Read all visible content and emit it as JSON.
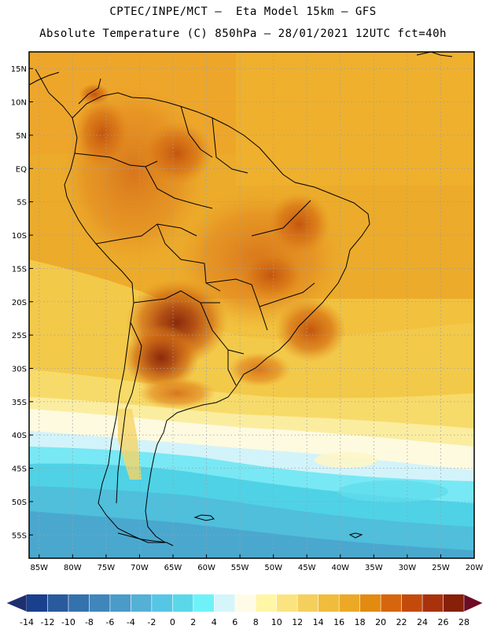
{
  "header": {
    "line1": "CPTEC/INPE/MCT –  Eta Model 15km – GFS",
    "line2": "Absolute Temperature (C) 850hPa – 28/01/2021 12UTC fct=40h"
  },
  "map": {
    "lat_labels": [
      "15N",
      "10N",
      "5N",
      "EQ",
      "5S",
      "10S",
      "15S",
      "20S",
      "25S",
      "30S",
      "35S",
      "40S",
      "45S",
      "50S",
      "55S"
    ],
    "lat_values": [
      15,
      10,
      5,
      0,
      -5,
      -10,
      -15,
      -20,
      -25,
      -30,
      -35,
      -40,
      -45,
      -50,
      -55
    ],
    "lon_labels": [
      "85W",
      "80W",
      "75W",
      "70W",
      "65W",
      "60W",
      "55W",
      "50W",
      "45W",
      "40W",
      "35W",
      "30W",
      "25W",
      "20W"
    ],
    "lon_values": [
      -85,
      -80,
      -75,
      -70,
      -65,
      -60,
      -55,
      -50,
      -45,
      -40,
      -35,
      -30,
      -25,
      -20
    ],
    "extent": {
      "lon_min": -86.5,
      "lon_max": -20,
      "lat_min": -58.5,
      "lat_max": 17.5
    }
  },
  "colorbar": {
    "labels": [
      "-14",
      "-12",
      "-10",
      "-8",
      "-6",
      "-4",
      "-2",
      "0",
      "2",
      "4",
      "6",
      "8",
      "10",
      "12",
      "14",
      "16",
      "18",
      "20",
      "22",
      "24",
      "26",
      "28"
    ],
    "colors": [
      "#1a3f8c",
      "#2a5a9e",
      "#3472ae",
      "#3f86bb",
      "#4a9bc8",
      "#55b0d6",
      "#56c6e4",
      "#5ad8ea",
      "#6ef2f8",
      "#d5f5fb",
      "#fffbe6",
      "#fff6a6",
      "#fbe480",
      "#f5cf5e",
      "#f0bc3c",
      "#eca926",
      "#e38a10",
      "#d6660e",
      "#c44a0c",
      "#a8320c",
      "#862008"
    ],
    "under_color": "#1e2f70",
    "over_color": "#6e0b25"
  }
}
